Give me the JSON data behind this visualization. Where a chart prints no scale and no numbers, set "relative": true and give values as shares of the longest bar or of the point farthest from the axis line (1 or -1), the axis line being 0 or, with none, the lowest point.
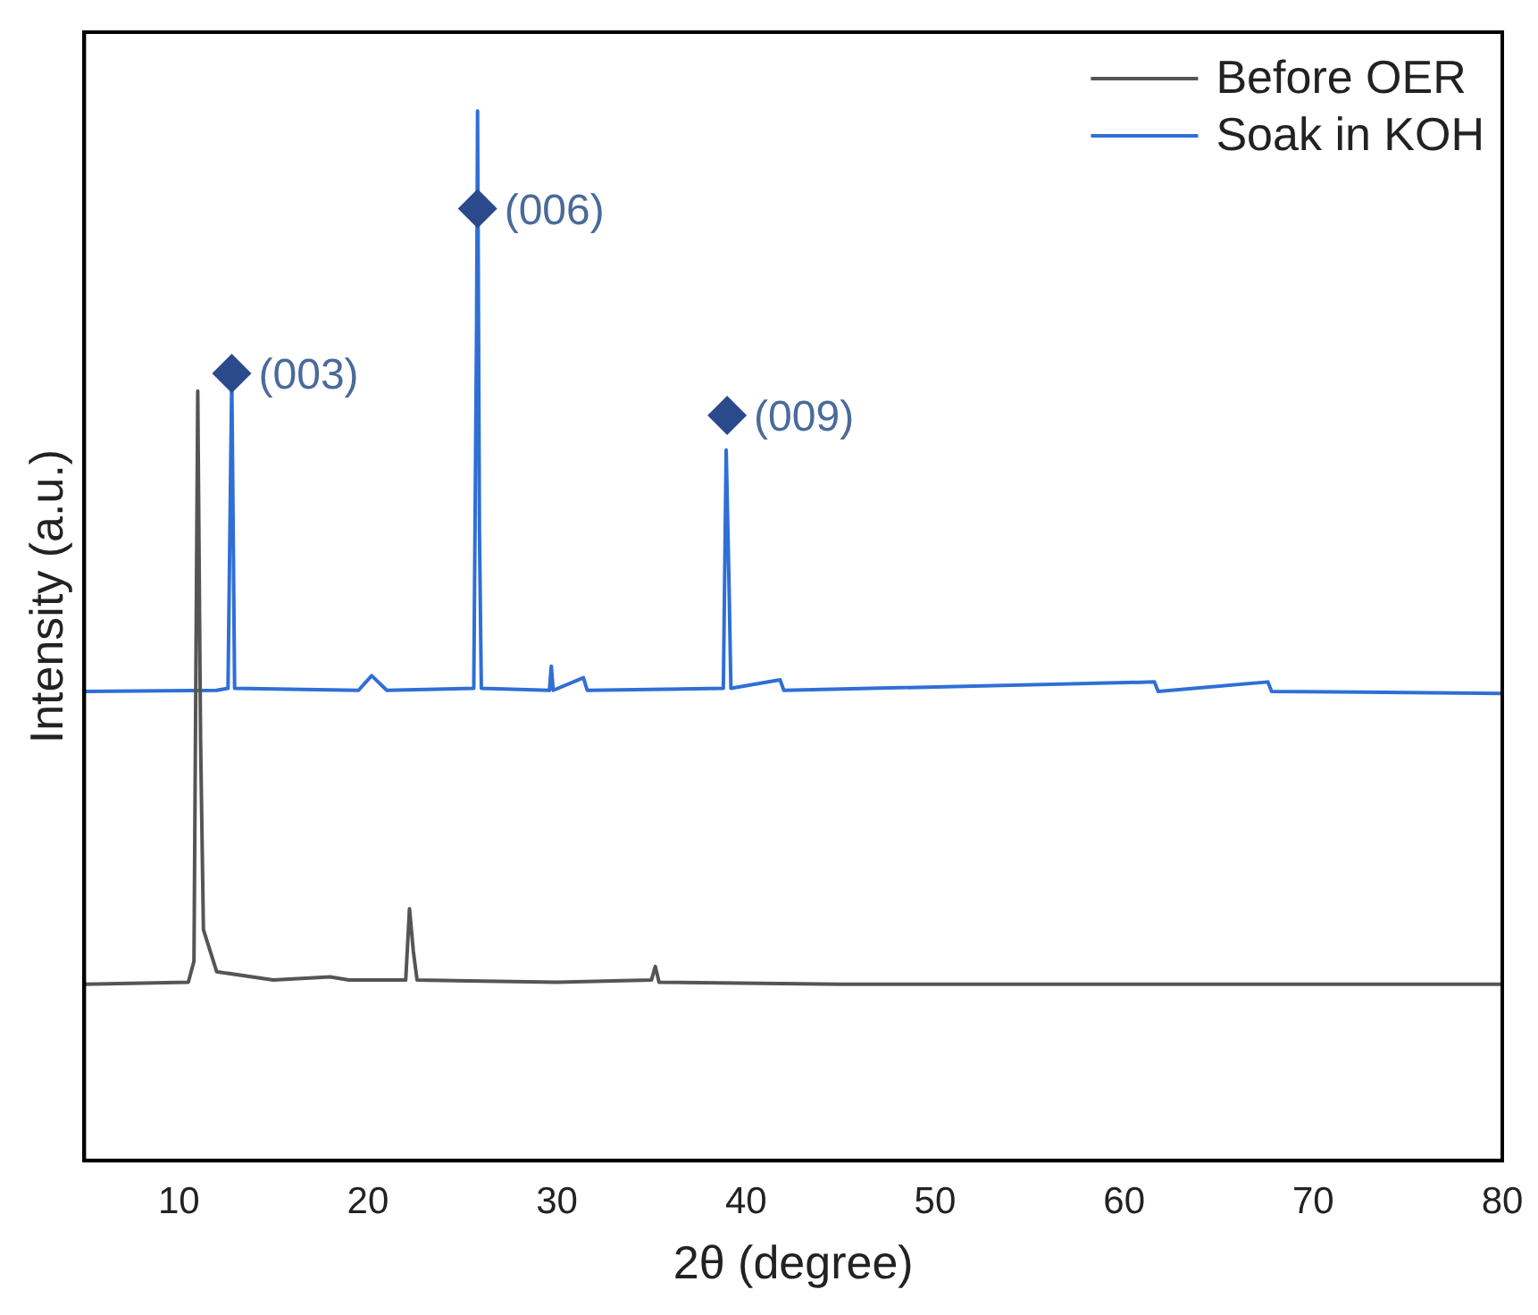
{
  "chart_data": {
    "type": "line",
    "relative": true,
    "xlabel": "2θ (degree)",
    "ylabel": "Intensity (a.u.)",
    "xlim": [
      5,
      80
    ],
    "xticks": [
      10,
      20,
      30,
      40,
      50,
      60,
      70,
      80
    ],
    "tick_labels": "x",
    "legend": "top right",
    "marker": "none",
    "line_style": "solid",
    "series": [
      {
        "name": "Before OER",
        "color": "#555555",
        "x": [
          5,
          10.5,
          10.8,
          11.0,
          11.15,
          11.3,
          12,
          15,
          18,
          19,
          22,
          22.2,
          22.4,
          22.6,
          30,
          35,
          35.2,
          35.4,
          45,
          80
        ],
        "values": [
          0.168,
          0.17,
          0.19,
          0.733,
          0.4,
          0.22,
          0.18,
          0.172,
          0.175,
          0.172,
          0.172,
          0.24,
          0.2,
          0.172,
          0.17,
          0.172,
          0.185,
          0.17,
          0.168,
          0.168
        ]
      },
      {
        "name": "Soak in KOH",
        "color": "#2f6fd6",
        "x": [
          5,
          12,
          12.6,
          12.8,
          12.95,
          19.5,
          20.2,
          21,
          25.6,
          25.75,
          25.8,
          25.9,
          26.0,
          29.6,
          29.7,
          29.8,
          31.4,
          31.6,
          38.8,
          38.95,
          39.1,
          39.2,
          41.8,
          42,
          61.6,
          61.8,
          67.6,
          67.8,
          80
        ],
        "values": [
          0.447,
          0.448,
          0.45,
          0.747,
          0.45,
          0.448,
          0.462,
          0.448,
          0.45,
          0.8,
          1,
          0.6,
          0.45,
          0.448,
          0.471,
          0.448,
          0.46,
          0.448,
          0.45,
          0.677,
          0.55,
          0.45,
          0.458,
          0.448,
          0.456,
          0.447,
          0.456,
          0.447,
          0.445
        ]
      }
    ],
    "annotations": [
      {
        "text": "(003)",
        "x": 12.8,
        "y": 0.75
      },
      {
        "text": "(006)",
        "x": 25.8,
        "y": 0.907
      },
      {
        "text": "(009)",
        "x": 39,
        "y": 0.71
      }
    ]
  }
}
